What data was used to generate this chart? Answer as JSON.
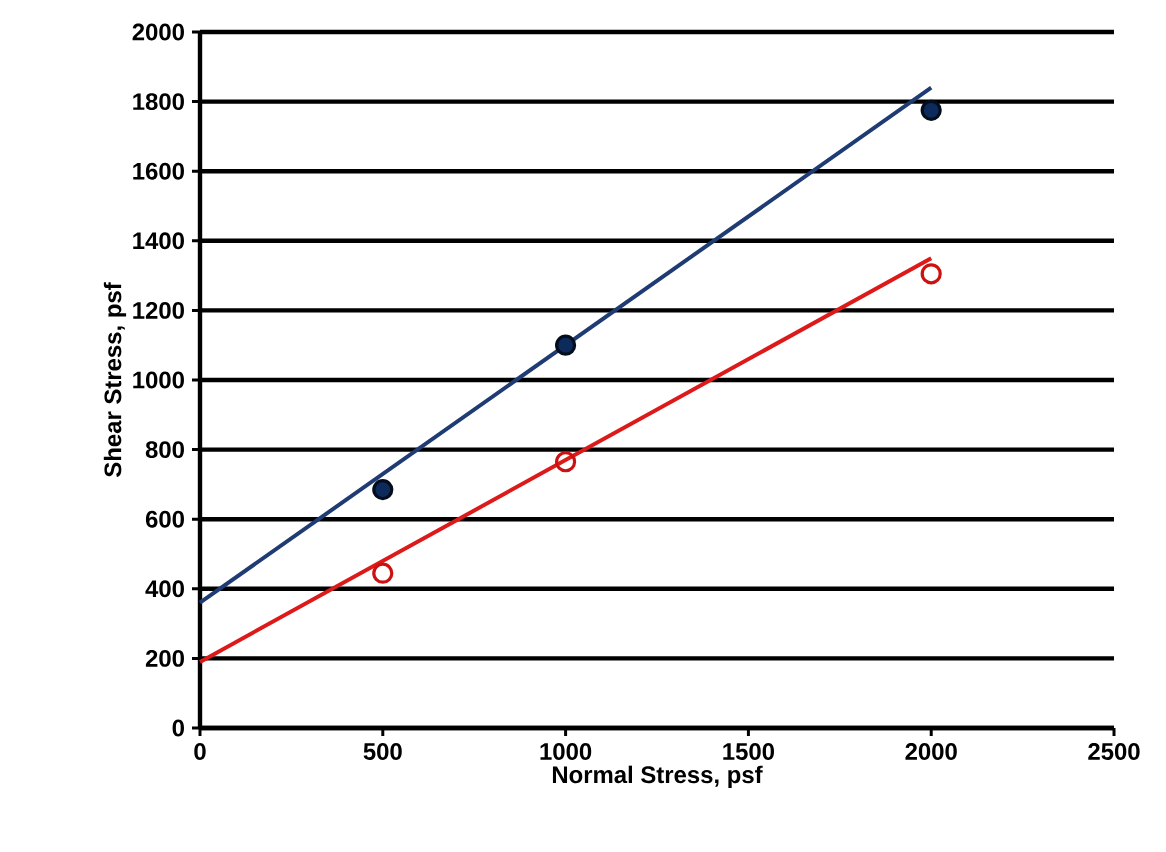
{
  "chart_data": {
    "type": "scatter",
    "xlabel": "Normal Stress, psf",
    "ylabel": "Shear Stress, psf",
    "xlim": [
      0,
      2500
    ],
    "ylim": [
      0,
      2000
    ],
    "xticks": [
      0,
      500,
      1000,
      1500,
      2000,
      2500
    ],
    "yticks": [
      0,
      200,
      400,
      600,
      800,
      1000,
      1200,
      1400,
      1600,
      1800,
      2000
    ],
    "grid": "y",
    "series": [
      {
        "color": "#0d2a5c",
        "x": [
          500,
          1000,
          2000
        ],
        "values": [
          685,
          1100,
          1775
        ],
        "marker": "circle"
      },
      {
        "color": "#cc1111",
        "x": [
          500,
          1000,
          2000
        ],
        "values": [
          445,
          765,
          1305
        ],
        "marker": "circle"
      },
      {
        "type": "line",
        "color": "#1f3b73",
        "x": [
          0,
          2000
        ],
        "values": [
          360,
          1840
        ]
      },
      {
        "type": "line",
        "color": "#dd1a1a",
        "x": [
          0,
          2000
        ],
        "values": [
          190,
          1350
        ]
      }
    ]
  }
}
